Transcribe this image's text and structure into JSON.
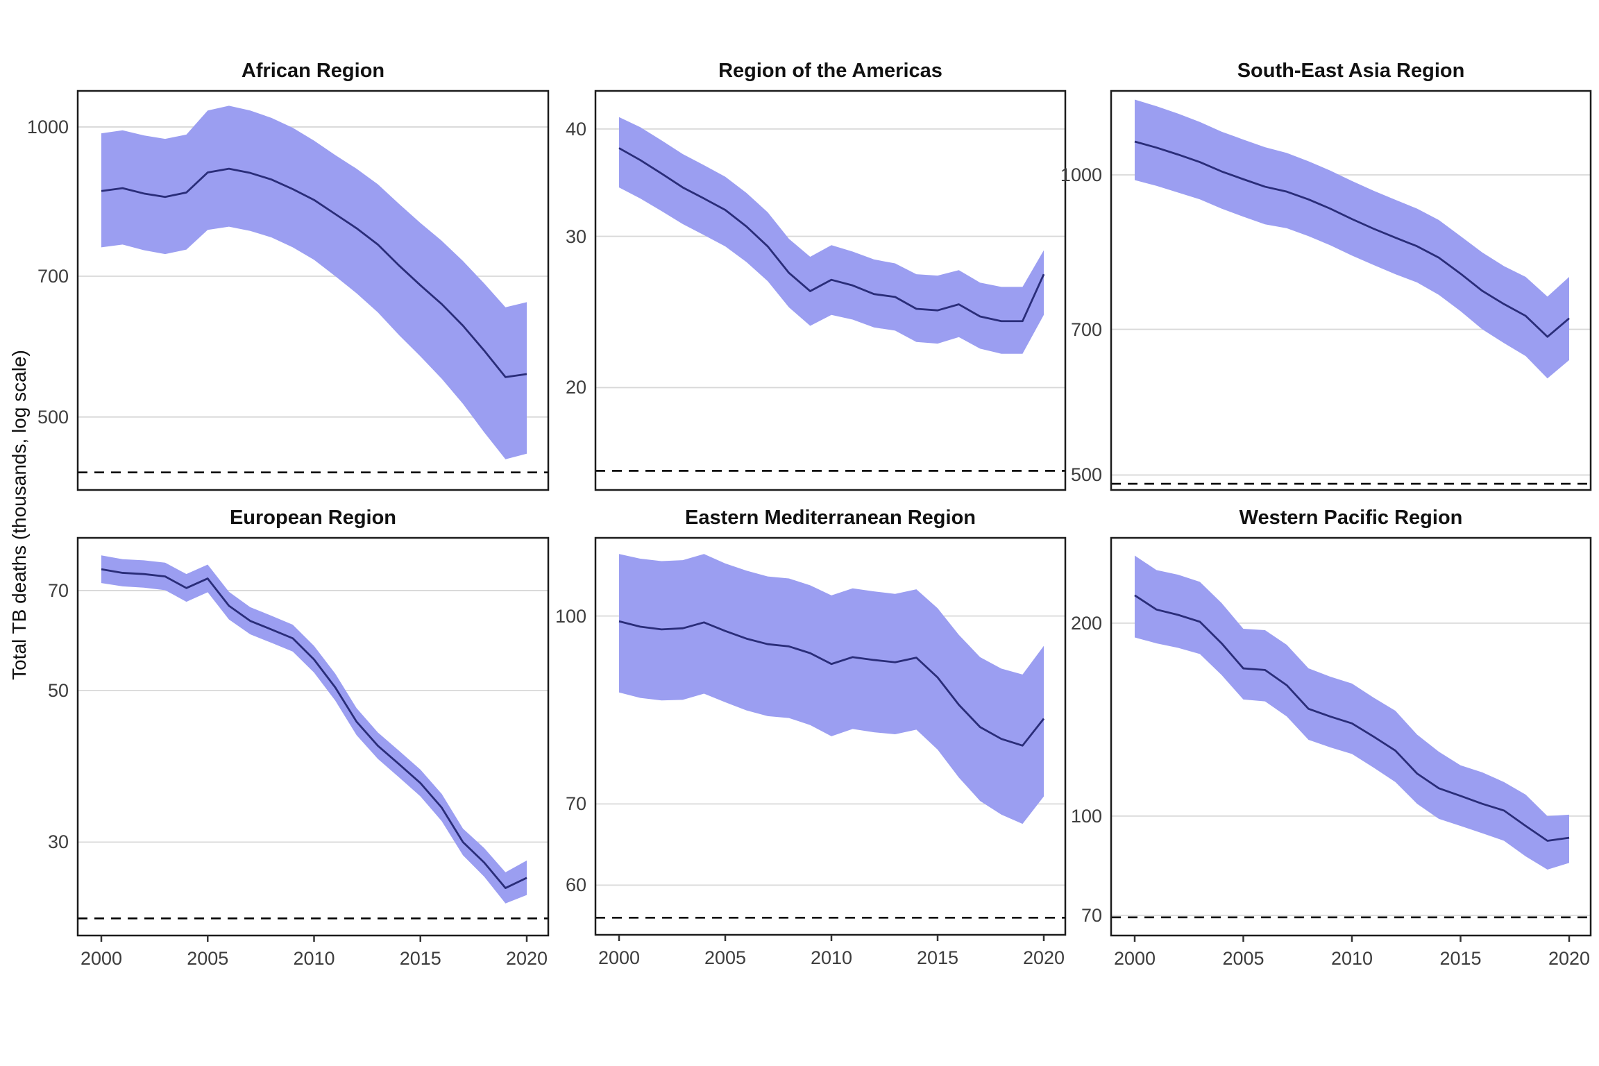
{
  "figure": {
    "ylabel": "Total TB deaths (thousands, log scale)",
    "x_ticks": [
      2000,
      2005,
      2010,
      2015,
      2020
    ]
  },
  "style": {
    "ribbon_color": "#9b9ef1",
    "line_color": "#2a2d79",
    "grid_color": "#d8d8d8",
    "border_color": "#1c1c1c",
    "dashed_line_color": "#000000",
    "tick_mark_color": "#333333",
    "tick_text_color": "#3d3d3d",
    "title_color": "#111111",
    "background_color": "#ffffff"
  },
  "chart_data": [
    {
      "type": "line",
      "title": "African Region",
      "log_scale": true,
      "x": [
        2000,
        2001,
        2002,
        2003,
        2004,
        2005,
        2006,
        2007,
        2008,
        2009,
        2010,
        2011,
        2012,
        2013,
        2014,
        2015,
        2016,
        2017,
        2018,
        2019,
        2020
      ],
      "series": [
        {
          "name": "best estimate",
          "values": [
            858,
            864,
            853,
            846,
            855,
            897,
            905,
            896,
            882,
            862,
            840,
            812,
            785,
            755,
            718,
            685,
            655,
            622,
            586,
            550,
            554
          ]
        },
        {
          "name": "ci lower",
          "values": [
            750,
            755,
            745,
            738,
            746,
            782,
            788,
            780,
            768,
            750,
            728,
            700,
            672,
            642,
            608,
            578,
            548,
            516,
            482,
            452,
            458
          ]
        },
        {
          "name": "ci upper",
          "values": [
            985,
            992,
            980,
            972,
            982,
            1040,
            1052,
            1040,
            1022,
            998,
            968,
            935,
            905,
            872,
            832,
            795,
            762,
            726,
            688,
            650,
            658
          ]
        }
      ],
      "yticks": [
        1000,
        700,
        500
      ],
      "ylim": [
        420,
        1090
      ],
      "dashed_reference_value": 438
    },
    {
      "type": "line",
      "title": "Region of the Americas",
      "log_scale": true,
      "x": [
        2000,
        2001,
        2002,
        2003,
        2004,
        2005,
        2006,
        2007,
        2008,
        2009,
        2010,
        2011,
        2012,
        2013,
        2014,
        2015,
        2016,
        2017,
        2018,
        2019,
        2020
      ],
      "series": [
        {
          "name": "best estimate",
          "values": [
            38.0,
            36.8,
            35.5,
            34.2,
            33.2,
            32.2,
            30.8,
            29.2,
            27.2,
            25.9,
            26.7,
            26.3,
            25.7,
            25.5,
            24.7,
            24.6,
            25.0,
            24.2,
            23.9,
            23.9,
            27.1
          ]
        },
        {
          "name": "ci lower",
          "values": [
            34.2,
            33.2,
            32.1,
            31.0,
            30.1,
            29.2,
            28.0,
            26.6,
            24.8,
            23.6,
            24.3,
            24.0,
            23.5,
            23.3,
            22.6,
            22.5,
            22.9,
            22.2,
            21.9,
            21.9,
            24.3
          ]
        },
        {
          "name": "ci upper",
          "values": [
            41.3,
            40.2,
            38.8,
            37.4,
            36.3,
            35.2,
            33.7,
            32.0,
            29.8,
            28.4,
            29.3,
            28.8,
            28.2,
            27.9,
            27.1,
            27.0,
            27.4,
            26.5,
            26.2,
            26.2,
            28.9
          ]
        }
      ],
      "yticks": [
        40,
        30,
        20
      ],
      "ylim": [
        15.2,
        44.3
      ],
      "dashed_reference_value": 16.0
    },
    {
      "type": "line",
      "title": "South-East Asia Region",
      "log_scale": true,
      "x": [
        2000,
        2001,
        2002,
        2003,
        2004,
        2005,
        2006,
        2007,
        2008,
        2009,
        2010,
        2011,
        2012,
        2013,
        2014,
        2015,
        2016,
        2017,
        2018,
        2019,
        2020
      ],
      "series": [
        {
          "name": "best estimate",
          "values": [
            1080,
            1065,
            1048,
            1030,
            1008,
            990,
            973,
            962,
            945,
            925,
            903,
            883,
            865,
            848,
            826,
            796,
            765,
            742,
            722,
            688,
            718
          ]
        },
        {
          "name": "ci lower",
          "values": [
            988,
            975,
            960,
            945,
            925,
            908,
            892,
            884,
            868,
            850,
            830,
            812,
            795,
            780,
            758,
            730,
            700,
            678,
            658,
            625,
            652
          ]
        },
        {
          "name": "ci upper",
          "values": [
            1190,
            1172,
            1152,
            1130,
            1105,
            1085,
            1066,
            1052,
            1032,
            1010,
            986,
            964,
            944,
            925,
            901,
            868,
            836,
            810,
            790,
            755,
            790
          ]
        }
      ],
      "yticks": [
        1000,
        700,
        500
      ],
      "ylim": [
        483,
        1214
      ],
      "dashed_reference_value": 490
    },
    {
      "type": "line",
      "title": "European Region",
      "log_scale": true,
      "x": [
        2000,
        2001,
        2002,
        2003,
        2004,
        2005,
        2006,
        2007,
        2008,
        2009,
        2010,
        2011,
        2012,
        2013,
        2014,
        2015,
        2016,
        2017,
        2018,
        2019,
        2020
      ],
      "series": [
        {
          "name": "best estimate",
          "values": [
            75.2,
            74.3,
            74.0,
            73.4,
            70.6,
            72.9,
            66.5,
            63.2,
            61.4,
            59.6,
            55.5,
            50.5,
            45.0,
            41.5,
            39.0,
            36.6,
            33.7,
            30.0,
            28.0,
            25.7,
            26.6
          ]
        },
        {
          "name": "ci lower",
          "values": [
            71.8,
            71.0,
            70.7,
            70.1,
            67.4,
            69.6,
            63.5,
            60.4,
            58.7,
            57.0,
            53.1,
            48.3,
            43.0,
            39.7,
            37.3,
            35.0,
            32.2,
            28.7,
            26.7,
            24.4,
            25.1
          ]
        },
        {
          "name": "ci upper",
          "values": [
            78.8,
            77.8,
            77.5,
            76.9,
            74.0,
            76.4,
            69.7,
            66.2,
            64.3,
            62.4,
            58.1,
            52.9,
            47.1,
            43.4,
            40.8,
            38.3,
            35.3,
            31.4,
            29.4,
            27.1,
            28.2
          ]
        }
      ],
      "yticks": [
        70,
        50,
        30
      ],
      "ylim": [
        21.9,
        83.6
      ],
      "dashed_reference_value": 23.2
    },
    {
      "type": "line",
      "title": "Eastern Mediterranean Region",
      "log_scale": true,
      "x": [
        2000,
        2001,
        2002,
        2003,
        2004,
        2005,
        2006,
        2007,
        2008,
        2009,
        2010,
        2011,
        2012,
        2013,
        2014,
        2015,
        2016,
        2017,
        2018,
        2019,
        2020
      ],
      "series": [
        {
          "name": "best estimate",
          "values": [
            99.0,
            98.0,
            97.5,
            97.7,
            98.8,
            97.2,
            95.8,
            94.8,
            94.4,
            93.2,
            91.3,
            92.5,
            92.0,
            91.6,
            92.4,
            89.0,
            84.5,
            81.0,
            79.2,
            78.2,
            82.3
          ]
        },
        {
          "name": "ci lower",
          "values": [
            86.5,
            85.6,
            85.2,
            85.3,
            86.3,
            84.9,
            83.6,
            82.7,
            82.4,
            81.3,
            79.6,
            80.7,
            80.2,
            79.9,
            80.6,
            77.6,
            73.6,
            70.4,
            68.6,
            67.4,
            71.0
          ]
        },
        {
          "name": "ci upper",
          "values": [
            112.5,
            111.5,
            111.0,
            111.2,
            112.5,
            110.5,
            109.0,
            107.8,
            107.4,
            106.0,
            104.0,
            105.4,
            104.8,
            104.3,
            105.2,
            101.5,
            96.5,
            92.5,
            90.5,
            89.5,
            94.5
          ]
        }
      ],
      "yticks": [
        100,
        70,
        60
      ],
      "ylim": [
        54.6,
        116
      ],
      "dashed_reference_value": 56.4
    },
    {
      "type": "line",
      "title": "Western Pacific Region",
      "log_scale": true,
      "x": [
        2000,
        2001,
        2002,
        2003,
        2004,
        2005,
        2006,
        2007,
        2008,
        2009,
        2010,
        2011,
        2012,
        2013,
        2014,
        2015,
        2016,
        2017,
        2018,
        2019,
        2020
      ],
      "series": [
        {
          "name": "best estimate",
          "values": [
            221,
            210,
            206,
            201,
            186,
            170,
            169,
            160,
            147,
            143,
            139.5,
            133,
            126.5,
            116.5,
            110.5,
            107.5,
            104.5,
            102,
            96.5,
            91.5,
            92.5
          ]
        },
        {
          "name": "ci lower",
          "values": [
            190,
            186,
            183,
            179,
            166,
            152,
            151,
            143,
            131.5,
            128,
            125,
            119,
            113,
            104.5,
            99,
            96.5,
            94,
            91.5,
            86.5,
            82.5,
            84.5
          ]
        },
        {
          "name": "ci upper",
          "values": [
            255,
            242,
            238,
            232,
            215,
            196,
            195,
            185,
            170,
            165,
            161,
            153,
            146,
            134,
            126,
            120,
            117,
            113,
            108,
            100,
            100.5
          ]
        }
      ],
      "yticks": [
        200,
        100,
        70
      ],
      "ylim": [
        65.1,
        271.7
      ],
      "dashed_reference_value": 69.5
    }
  ]
}
